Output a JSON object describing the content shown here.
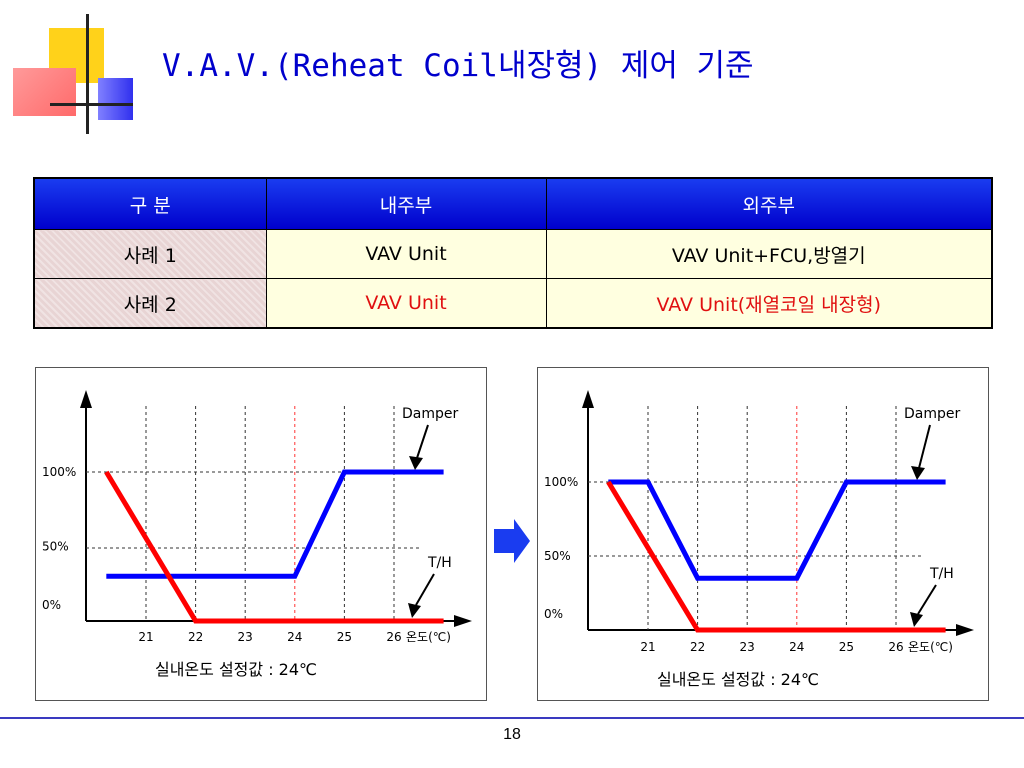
{
  "slide": {
    "title": "V.A.V.(Reheat Coil내장형) 제어 기준",
    "page_number": "18",
    "accent_color": "#0000cc"
  },
  "table": {
    "headers": [
      "구 분",
      "내주부",
      "외주부"
    ],
    "rows": [
      [
        "사례 1",
        "VAV Unit",
        "VAV Unit+FCU,방열기"
      ],
      [
        "사례 2",
        "VAV Unit",
        "VAV Unit(재열코일 내장형)"
      ]
    ]
  },
  "arrow_icon": "right-arrow",
  "chart_data": [
    {
      "type": "line",
      "x_ticks": [
        "21",
        "22",
        "23",
        "24",
        "25",
        "26"
      ],
      "x_unit_label": "온도(℃)",
      "y_ticks": [
        "100%",
        "50%",
        "0%"
      ],
      "caption": "실내온도 설정값 : 24℃",
      "setpoint": 24,
      "xlim": [
        20.2,
        27
      ],
      "ylim": [
        0,
        100
      ],
      "series": [
        {
          "name": "Damper",
          "color": "#0000ff",
          "x": [
            20,
            24,
            25,
            27
          ],
          "y": [
            30,
            30,
            100,
            100
          ]
        },
        {
          "name": "T/H",
          "color": "#ff0000",
          "x": [
            20,
            20.2,
            22,
            27
          ],
          "y": [
            100,
            100,
            0,
            0
          ]
        }
      ]
    },
    {
      "type": "line",
      "x_ticks": [
        "21",
        "22",
        "23",
        "24",
        "25",
        "26"
      ],
      "x_unit_label": "온도(℃)",
      "y_ticks": [
        "100%",
        "50%",
        "0%"
      ],
      "caption": "실내온도 설정값 : 24℃",
      "setpoint": 24,
      "xlim": [
        20.2,
        27
      ],
      "ylim": [
        0,
        100
      ],
      "series": [
        {
          "name": "Damper",
          "color": "#0000ff",
          "x": [
            20,
            21,
            22,
            24,
            25,
            27
          ],
          "y": [
            100,
            100,
            35,
            35,
            100,
            100
          ]
        },
        {
          "name": "T/H",
          "color": "#ff0000",
          "x": [
            20,
            20.2,
            22,
            27
          ],
          "y": [
            100,
            100,
            0,
            0
          ]
        }
      ]
    }
  ]
}
